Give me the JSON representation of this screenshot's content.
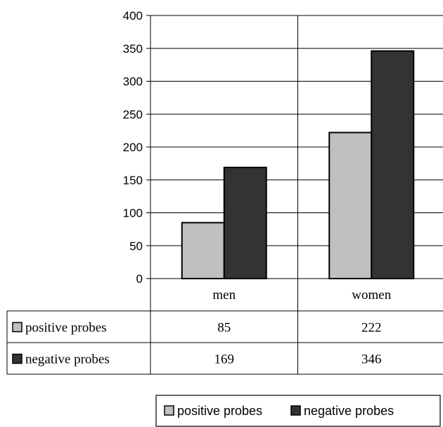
{
  "chart_data": {
    "type": "bar",
    "categories": [
      "men",
      "women"
    ],
    "series": [
      {
        "name": "positive probes",
        "values": [
          85,
          222
        ],
        "color": "#c0c0c0"
      },
      {
        "name": "negative probes",
        "values": [
          169,
          346
        ],
        "color": "#333333"
      }
    ],
    "ylim": [
      0,
      400
    ],
    "yticks": [
      0,
      50,
      100,
      150,
      200,
      250,
      300,
      350,
      400
    ],
    "grid": true,
    "legend": "bottom-right",
    "data_table": true,
    "title": "",
    "xlabel": "",
    "ylabel": ""
  }
}
